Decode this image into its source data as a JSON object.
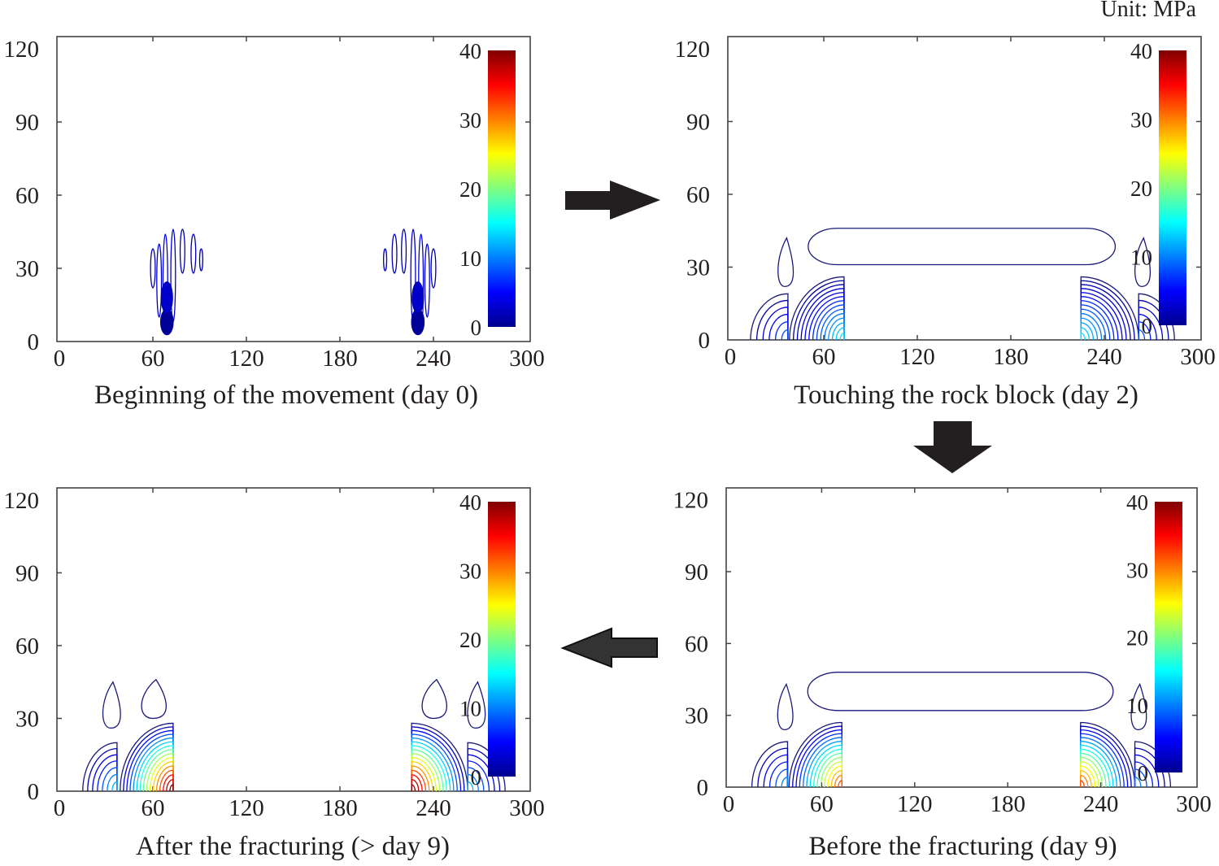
{
  "unit_label": "Unit: MPa",
  "colors": {
    "frame": "#444444",
    "arrow": "#231f20",
    "colormap": "jet"
  },
  "chart_data": [
    {
      "type": "contour",
      "caption": "Beginning of the movement (day 0)",
      "xlim": [
        0,
        300
      ],
      "ylim": [
        0,
        125
      ],
      "xticks": [
        "0",
        "60",
        "120",
        "180",
        "240",
        "300"
      ],
      "yticks": [
        "0",
        "30",
        "60",
        "90",
        "120"
      ],
      "colorbar": {
        "min": 0,
        "max": 40,
        "ticks": [
          "0",
          "10",
          "20",
          "30",
          "40"
        ]
      },
      "fans": [],
      "lobes": [
        {
          "x": 60,
          "y0": 22,
          "y1": 38,
          "w": 3,
          "v": 2
        },
        {
          "x": 64,
          "y0": 10,
          "y1": 40,
          "w": 3,
          "v": 3
        },
        {
          "x": 68,
          "y0": 5,
          "y1": 44,
          "w": 3,
          "v": 4
        },
        {
          "x": 73,
          "y0": 8,
          "y1": 46,
          "w": 3,
          "v": 3
        },
        {
          "x": 79,
          "y0": 28,
          "y1": 46,
          "w": 3,
          "v": 2
        },
        {
          "x": 86,
          "y0": 28,
          "y1": 44,
          "w": 3,
          "v": 2
        },
        {
          "x": 91,
          "y0": 29,
          "y1": 38,
          "w": 2,
          "v": 2
        },
        {
          "x": 209,
          "y0": 29,
          "y1": 38,
          "w": 2,
          "v": 2
        },
        {
          "x": 215,
          "y0": 28,
          "y1": 44,
          "w": 3,
          "v": 2
        },
        {
          "x": 221,
          "y0": 28,
          "y1": 46,
          "w": 3,
          "v": 2
        },
        {
          "x": 227,
          "y0": 8,
          "y1": 46,
          "w": 3,
          "v": 3
        },
        {
          "x": 232,
          "y0": 5,
          "y1": 44,
          "w": 3,
          "v": 4
        },
        {
          "x": 236,
          "y0": 10,
          "y1": 40,
          "w": 3,
          "v": 3
        },
        {
          "x": 240,
          "y0": 22,
          "y1": 38,
          "w": 3,
          "v": 2
        }
      ],
      "blobs": [
        {
          "x": 69,
          "y": 8,
          "r": 4,
          "v": 1
        },
        {
          "x": 230,
          "y": 8,
          "r": 4,
          "v": 1
        }
      ],
      "teardrops": [],
      "band": null
    },
    {
      "type": "contour",
      "caption": "Touching the rock block (day 2)",
      "xlim": [
        0,
        300
      ],
      "ylim": [
        0,
        125
      ],
      "xticks": [
        "0",
        "60",
        "120",
        "180",
        "240",
        "300"
      ],
      "yticks": [
        "0",
        "30",
        "60",
        "90",
        "120"
      ],
      "colorbar": {
        "min": 0,
        "max": 40,
        "ticks": [
          "0",
          "10",
          "20",
          "30",
          "40"
        ]
      },
      "fans": [
        {
          "edge": 37,
          "far": 13,
          "height": 19,
          "peak": 8,
          "levels": 6
        },
        {
          "edge": 73,
          "far": 38,
          "height": 26,
          "peak": 14,
          "levels": 14
        },
        {
          "edge": 225,
          "far": 262,
          "height": 26,
          "peak": 14,
          "levels": 14
        },
        {
          "edge": 262,
          "far": 285,
          "height": 19,
          "peak": 8,
          "levels": 6
        }
      ],
      "lobes": [],
      "blobs": [],
      "teardrops": [
        {
          "x": 35,
          "y0": 22,
          "y1": 42,
          "w": 12,
          "v": 1
        },
        {
          "x": 264,
          "y0": 22,
          "y1": 42,
          "w": 12,
          "v": 1
        }
      ],
      "band": {
        "x0": 50,
        "x1": 247,
        "y0": 31,
        "y1": 46,
        "v": 1
      }
    },
    {
      "type": "contour",
      "caption": "After the fracturing (> day 9)",
      "xlim": [
        0,
        300
      ],
      "ylim": [
        0,
        125
      ],
      "xticks": [
        "0",
        "60",
        "120",
        "180",
        "240",
        "300"
      ],
      "yticks": [
        "0",
        "30",
        "60",
        "90",
        "120"
      ],
      "colorbar": {
        "min": 0,
        "max": 40,
        "ticks": [
          "0",
          "10",
          "20",
          "30",
          "40"
        ]
      },
      "fans": [
        {
          "edge": 37,
          "far": 15,
          "height": 20,
          "peak": 12,
          "levels": 7
        },
        {
          "edge": 73,
          "far": 39,
          "height": 28,
          "peak": 40,
          "levels": 16
        },
        {
          "edge": 226,
          "far": 262,
          "height": 28,
          "peak": 40,
          "levels": 16
        },
        {
          "edge": 262,
          "far": 286,
          "height": 20,
          "peak": 12,
          "levels": 7
        }
      ],
      "lobes": [],
      "blobs": [],
      "teardrops": [
        {
          "x": 33,
          "y0": 26,
          "y1": 45,
          "w": 14,
          "v": 1
        },
        {
          "x": 60,
          "y0": 30,
          "y1": 46,
          "w": 20,
          "v": 1
        },
        {
          "x": 240,
          "y0": 30,
          "y1": 46,
          "w": 20,
          "v": 1
        },
        {
          "x": 267,
          "y0": 26,
          "y1": 45,
          "w": 14,
          "v": 1
        }
      ],
      "band": null
    },
    {
      "type": "contour",
      "caption": "Before the fracturing (day 9)",
      "xlim": [
        0,
        300
      ],
      "ylim": [
        0,
        125
      ],
      "xticks": [
        "0",
        "60",
        "120",
        "180",
        "240",
        "300"
      ],
      "yticks": [
        "0",
        "30",
        "60",
        "90",
        "120"
      ],
      "colorbar": {
        "min": 0,
        "max": 40,
        "ticks": [
          "0",
          "10",
          "20",
          "30",
          "40"
        ]
      },
      "fans": [
        {
          "edge": 38,
          "far": 15,
          "height": 19,
          "peak": 10,
          "levels": 6
        },
        {
          "edge": 73,
          "far": 39,
          "height": 27,
          "peak": 32,
          "levels": 15
        },
        {
          "edge": 227,
          "far": 262,
          "height": 27,
          "peak": 32,
          "levels": 15
        },
        {
          "edge": 262,
          "far": 285,
          "height": 19,
          "peak": 10,
          "levels": 6
        }
      ],
      "lobes": [],
      "blobs": [],
      "teardrops": [
        {
          "x": 36,
          "y0": 24,
          "y1": 43,
          "w": 12,
          "v": 1
        },
        {
          "x": 264,
          "y0": 24,
          "y1": 43,
          "w": 12,
          "v": 1
        }
      ],
      "band": {
        "x0": 51,
        "x1": 248,
        "y0": 32,
        "y1": 48,
        "v": 1
      }
    }
  ]
}
